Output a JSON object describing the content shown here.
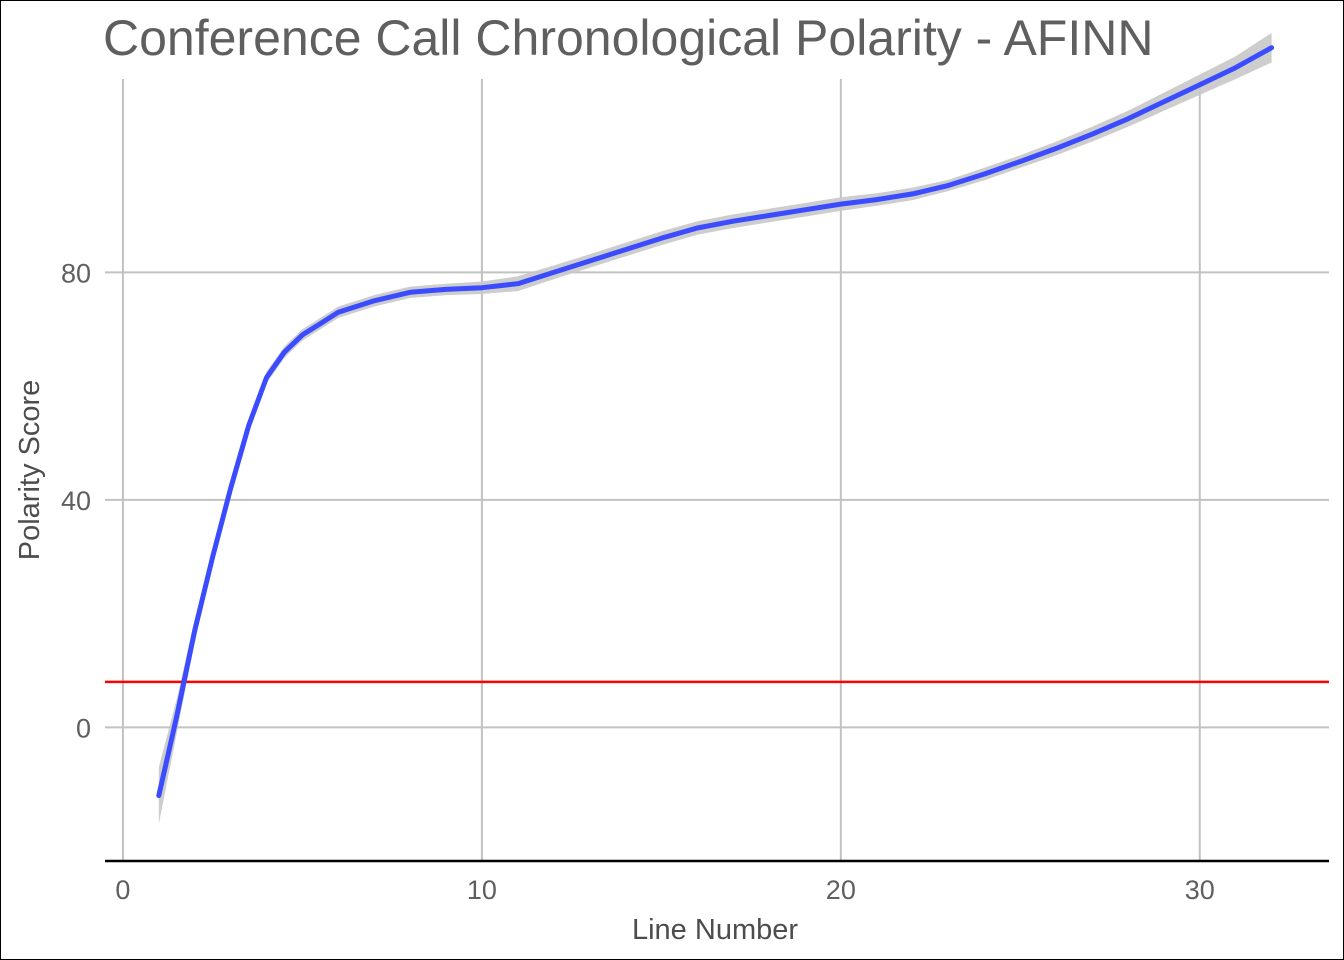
{
  "chart_data": {
    "type": "line",
    "title": "Conference Call Chronological Polarity - AFINN",
    "xlabel": "Line Number",
    "ylabel": "Polarity Score",
    "xlim": [
      -0.5,
      33.6
    ],
    "ylim": [
      -23.5,
      114
    ],
    "x_ticks": [
      0,
      10,
      20,
      30
    ],
    "x_tick_labels": [
      "0",
      "10",
      "20",
      "30"
    ],
    "y_ticks": [
      0,
      40,
      80
    ],
    "y_tick_labels": [
      "0",
      "40",
      "80"
    ],
    "grid": true,
    "reference_line": {
      "y": 8,
      "color": "#ff0000"
    },
    "series": [
      {
        "color": "#3b4cff",
        "band_color": "#c8c8c8",
        "x": [
          1,
          1.5,
          2,
          2.5,
          3,
          3.5,
          4,
          4.5,
          5,
          5.5,
          6,
          7,
          8,
          9,
          10,
          11,
          12,
          13,
          14,
          15,
          16,
          17,
          18,
          19,
          20,
          21,
          22,
          23,
          24,
          25,
          26,
          27,
          28,
          29,
          30,
          31,
          32
        ],
        "y": [
          -12,
          2,
          17,
          30,
          42,
          53,
          61.5,
          66,
          69,
          71,
          73,
          75,
          76.5,
          77,
          77.3,
          78,
          80,
          82,
          84,
          86,
          87.8,
          89,
          90,
          91,
          92,
          92.8,
          93.8,
          95.3,
          97.3,
          99.5,
          101.8,
          104.3,
          107,
          110,
          113,
          116,
          119.5
        ],
        "lower": [
          -17,
          -1,
          15,
          28.5,
          41,
          52,
          60.5,
          65,
          68,
          70,
          72,
          74,
          75.5,
          76,
          76.2,
          76.7,
          78.8,
          80.8,
          82.8,
          84.8,
          86.6,
          87.8,
          88.8,
          89.8,
          90.8,
          91.7,
          92.7,
          94.3,
          96.2,
          98.4,
          100.6,
          103,
          105.6,
          108.4,
          111.2,
          114,
          116.9
        ],
        "upper": [
          -7,
          5,
          19,
          31.5,
          43,
          54,
          62.5,
          67,
          70,
          72,
          74,
          76,
          77.5,
          78,
          78.4,
          79.3,
          81.2,
          83.2,
          85.2,
          87.2,
          89,
          90.2,
          91.2,
          92.2,
          93.2,
          93.9,
          94.9,
          96.3,
          98.4,
          100.6,
          103,
          105.6,
          108.4,
          111.6,
          114.8,
          118,
          122.1
        ]
      }
    ]
  }
}
